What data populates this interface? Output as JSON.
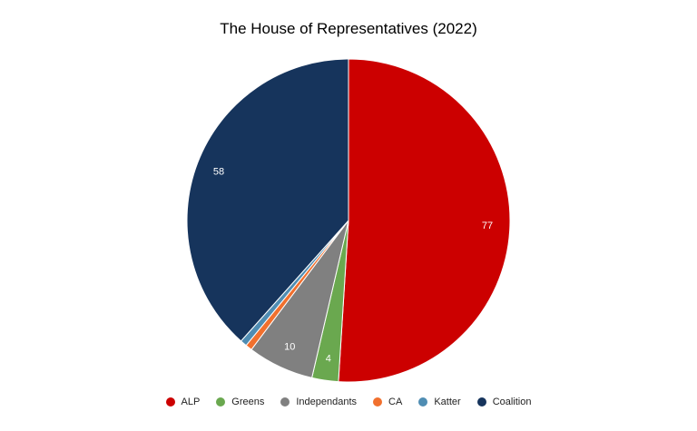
{
  "chart_data": {
    "type": "pie",
    "title": "The House of Representatives (2022)",
    "slices": [
      {
        "label": "ALP",
        "value": 77,
        "color": "#CC0000",
        "show_label": true
      },
      {
        "label": "Greens",
        "value": 4,
        "color": "#6AA84F",
        "show_label": true
      },
      {
        "label": "Independants",
        "value": 10,
        "color": "#808080",
        "show_label": true
      },
      {
        "label": "CA",
        "value": 1,
        "color": "#F1702E",
        "show_label": false
      },
      {
        "label": "Katter",
        "value": 1,
        "color": "#4F8DB3",
        "show_label": false
      },
      {
        "label": "Coalition",
        "value": 58,
        "color": "#16345C",
        "show_label": true
      }
    ],
    "legend_position": "bottom"
  }
}
